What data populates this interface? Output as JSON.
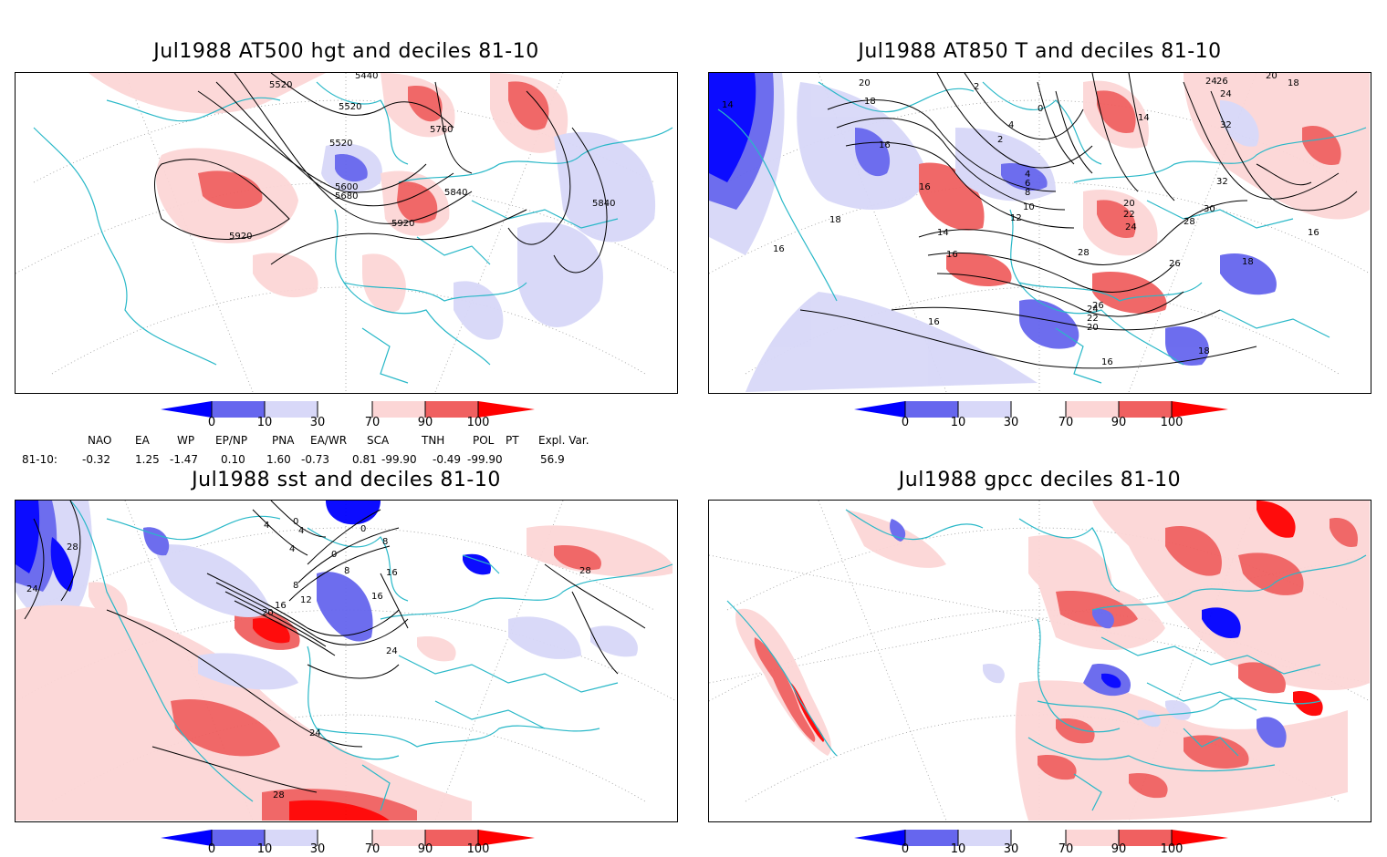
{
  "panels": [
    {
      "id": "p1",
      "title": "Jul1988 AT500 hgt and deciles 81-10",
      "contour_labels": [
        "5440",
        "5520",
        "5520",
        "5520",
        "5600",
        "5680",
        "5760",
        "5840",
        "5840",
        "5920",
        "5920"
      ]
    },
    {
      "id": "p2",
      "title": "Jul1988 AT850 T and deciles 81-10",
      "contour_labels": [
        "14",
        "20",
        "18",
        "16",
        "16",
        "18",
        "16",
        "14",
        "16",
        "12",
        "10",
        "8",
        "6",
        "4",
        "4",
        "2",
        "2",
        "0",
        "14",
        "20",
        "22",
        "24",
        "24",
        "26",
        "28",
        "28",
        "30",
        "32",
        "32",
        "26",
        "24",
        "26",
        "24",
        "22",
        "20",
        "18",
        "16",
        "16",
        "18",
        "16",
        "18",
        "20"
      ]
    },
    {
      "id": "p3",
      "title": "Jul1988 sst and deciles 81-10",
      "contour_labels": [
        "24",
        "28",
        "20",
        "16",
        "12",
        "8",
        "8",
        "8",
        "4",
        "4",
        "0",
        "0",
        "0",
        "4",
        "16",
        "16",
        "24",
        "24",
        "28",
        "28"
      ]
    },
    {
      "id": "p4",
      "title": "Jul1988 gpcc deciles 81-10",
      "contour_labels": []
    }
  ],
  "colorbar": {
    "ticks": [
      "0",
      "10",
      "30",
      "70",
      "90",
      "100"
    ],
    "colors": [
      "#0000ff",
      "#6666ee",
      "#d8d8f8",
      "#ffffff",
      "#fcd6d6",
      "#f06060",
      "#ff0000"
    ]
  },
  "indices": {
    "headers": [
      "NAO",
      "EA",
      "WP",
      "EP/NP",
      "PNA",
      "EA/WR",
      "SCA",
      "TNH",
      "POL",
      "PT",
      "Expl. Var."
    ],
    "row_label": "81-10:",
    "values": [
      "-0.32",
      "1.25",
      "-1.47",
      "0.10",
      "1.60",
      "-0.73",
      "0.81",
      "-99.90",
      "-0.49",
      "-99.90",
      "56.9"
    ]
  }
}
